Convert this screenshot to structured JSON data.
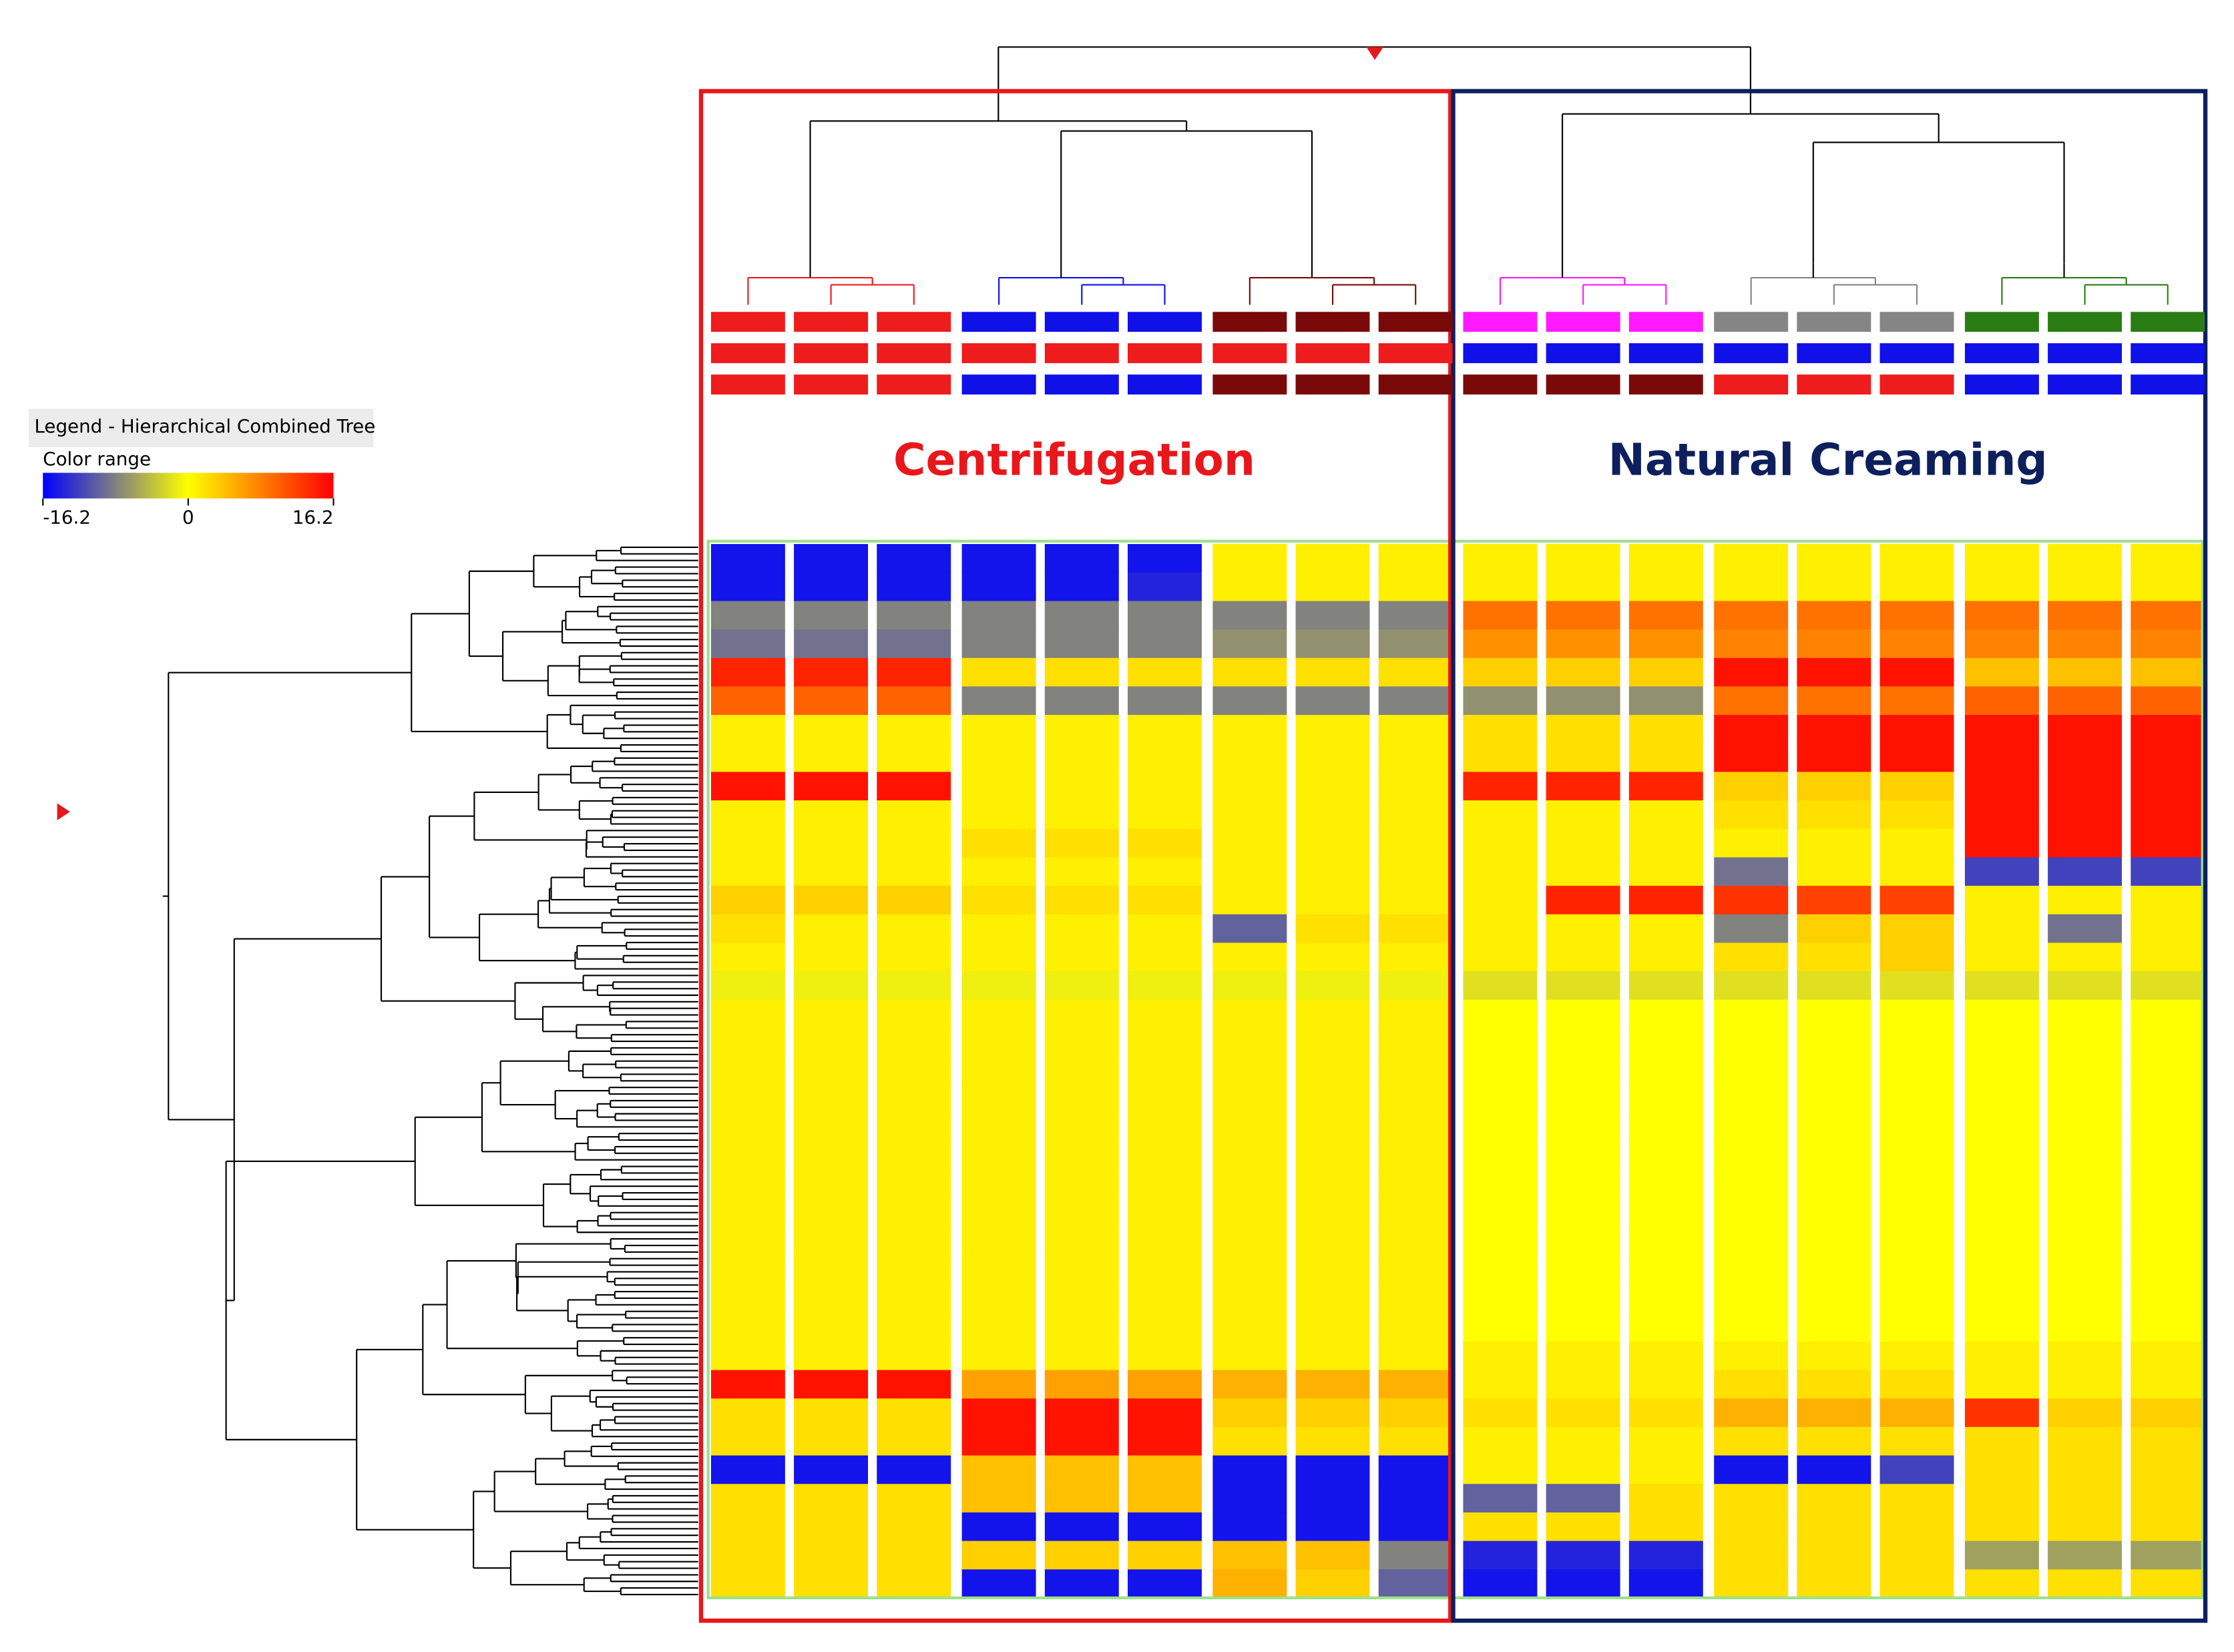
{
  "chart_data": {
    "type": "heatmap",
    "legend_title": "Legend - Hierarchical Combined Tree",
    "colorbar_label": "Color range",
    "clim": [
      -16.2,
      16.2
    ],
    "cticks": [
      -16.2,
      0,
      16.2
    ],
    "colorscale": [
      "#0000ff",
      "#808080",
      "#ffff00",
      "#ff8000",
      "#ff0000"
    ],
    "groups": [
      {
        "name": "Centrifugation",
        "color": "#e8171b"
      },
      {
        "name": "Natural Creaming",
        "color": "#0d1f5c"
      }
    ],
    "column_annotations": [
      [
        "#ee1c1c",
        "#ee1c1c",
        "#ee1c1c",
        "#1010e8",
        "#1010e8",
        "#1010e8",
        "#7a0a0a",
        "#7a0a0a",
        "#7a0a0a",
        "#ff19ff",
        "#ff19ff",
        "#ff19ff",
        "#858585",
        "#858585",
        "#858585",
        "#2a7d14",
        "#2a7d14",
        "#2a7d14"
      ],
      [
        "#ee1c1c",
        "#ee1c1c",
        "#ee1c1c",
        "#ee1c1c",
        "#ee1c1c",
        "#ee1c1c",
        "#ee1c1c",
        "#ee1c1c",
        "#ee1c1c",
        "#1010e8",
        "#1010e8",
        "#1010e8",
        "#1010e8",
        "#1010e8",
        "#1010e8",
        "#1010e8",
        "#1010e8",
        "#1010e8"
      ],
      [
        "#ee1c1c",
        "#ee1c1c",
        "#ee1c1c",
        "#1010e8",
        "#1010e8",
        "#1010e8",
        "#7a0a0a",
        "#7a0a0a",
        "#7a0a0a",
        "#7a0a0a",
        "#7a0a0a",
        "#7a0a0a",
        "#ee1c1c",
        "#ee1c1c",
        "#ee1c1c",
        "#1010e8",
        "#1010e8",
        "#1010e8"
      ]
    ],
    "values": [
      [
        -15,
        -15,
        -15,
        -15,
        -15,
        -15,
        1,
        1,
        1,
        1,
        1,
        1,
        1,
        1,
        1,
        1,
        1,
        1
      ],
      [
        -15,
        -15,
        -15,
        -15,
        -15,
        -14,
        1,
        1,
        1,
        1,
        1,
        1,
        1,
        1,
        1,
        1,
        1,
        1
      ],
      [
        -8,
        -8,
        -8,
        -8,
        -8,
        -8,
        -8,
        -8,
        -8,
        9,
        9,
        9,
        9,
        9,
        9,
        9,
        9,
        9
      ],
      [
        -9,
        -9,
        -9,
        -8,
        -8,
        -8,
        -7,
        -7,
        -7,
        7,
        7,
        7,
        8,
        8,
        8,
        8,
        8,
        8
      ],
      [
        14,
        14,
        14,
        2,
        2,
        2,
        2,
        2,
        2,
        3,
        3,
        3,
        15,
        15,
        15,
        4,
        4,
        4
      ],
      [
        10,
        10,
        10,
        -8,
        -8,
        -8,
        -8,
        -8,
        -8,
        -7,
        -7,
        -7,
        9,
        9,
        9,
        10,
        10,
        10
      ],
      [
        1,
        1,
        1,
        1,
        1,
        1,
        1,
        1,
        1,
        2,
        2,
        2,
        15,
        15,
        15,
        15,
        15,
        15
      ],
      [
        1,
        1,
        1,
        1,
        1,
        1,
        1,
        1,
        1,
        2,
        2,
        2,
        15,
        15,
        15,
        15,
        15,
        15
      ],
      [
        15,
        15,
        15,
        1,
        1,
        1,
        1,
        1,
        1,
        14,
        14,
        14,
        3,
        3,
        3,
        15,
        15,
        15
      ],
      [
        1,
        1,
        1,
        1,
        1,
        1,
        1,
        1,
        1,
        1,
        1,
        1,
        2,
        2,
        2,
        15,
        15,
        15
      ],
      [
        1,
        1,
        1,
        2,
        2,
        2,
        1,
        1,
        1,
        1,
        1,
        1,
        1,
        1,
        1,
        15,
        15,
        15
      ],
      [
        1,
        1,
        1,
        1,
        1,
        1,
        1,
        1,
        1,
        1,
        1,
        1,
        -9,
        1,
        1,
        -12,
        -12,
        -12
      ],
      [
        3,
        3,
        3,
        2,
        2,
        2,
        1,
        1,
        1,
        1,
        14,
        14,
        13,
        12,
        12,
        1,
        1,
        1
      ],
      [
        2,
        1,
        1,
        1,
        1,
        1,
        -10,
        2,
        2,
        1,
        1,
        1,
        -8,
        3,
        3,
        1,
        -9,
        1
      ],
      [
        1,
        1,
        1,
        1,
        1,
        1,
        1,
        1,
        1,
        1,
        1,
        1,
        2,
        2,
        3,
        1,
        1,
        1
      ],
      [
        -1,
        -1,
        -1,
        -1,
        -1,
        -1,
        -1,
        -1,
        -1,
        -2,
        -2,
        -2,
        -2,
        -2,
        -2,
        -2,
        -2,
        -2
      ],
      [
        1,
        1,
        1,
        1,
        1,
        1,
        1,
        1,
        1,
        0,
        0,
        0,
        0,
        0,
        0,
        0,
        0,
        0
      ],
      [
        1,
        1,
        1,
        1,
        1,
        1,
        1,
        1,
        1,
        0,
        0,
        0,
        0,
        0,
        0,
        0,
        0,
        0
      ],
      [
        1,
        1,
        1,
        1,
        1,
        1,
        1,
        1,
        1,
        0,
        0,
        0,
        0,
        0,
        0,
        0,
        0,
        0
      ],
      [
        1,
        1,
        1,
        1,
        1,
        1,
        1,
        1,
        1,
        0,
        0,
        0,
        0,
        0,
        0,
        0,
        0,
        0
      ],
      [
        1,
        1,
        1,
        1,
        1,
        1,
        1,
        1,
        1,
        0,
        0,
        0,
        0,
        0,
        0,
        0,
        0,
        0
      ],
      [
        1,
        1,
        1,
        1,
        1,
        1,
        1,
        1,
        1,
        0,
        0,
        0,
        0,
        0,
        0,
        0,
        0,
        0
      ],
      [
        1,
        1,
        1,
        1,
        1,
        1,
        1,
        1,
        1,
        0,
        0,
        0,
        0,
        0,
        0,
        0,
        0,
        0
      ],
      [
        1,
        1,
        1,
        1,
        1,
        1,
        1,
        1,
        1,
        0,
        0,
        0,
        0,
        0,
        0,
        0,
        0,
        0
      ],
      [
        1,
        1,
        1,
        1,
        1,
        1,
        1,
        1,
        1,
        0,
        0,
        0,
        0,
        0,
        0,
        0,
        0,
        0
      ],
      [
        1,
        1,
        1,
        1,
        1,
        1,
        1,
        1,
        1,
        0,
        0,
        0,
        0,
        0,
        0,
        0,
        0,
        0
      ],
      [
        1,
        1,
        1,
        1,
        1,
        1,
        1,
        1,
        1,
        0,
        0,
        0,
        0,
        0,
        0,
        0,
        0,
        0
      ],
      [
        1,
        1,
        1,
        1,
        1,
        1,
        1,
        1,
        1,
        0,
        0,
        0,
        0,
        0,
        0,
        0,
        0,
        0
      ],
      [
        1,
        1,
        1,
        1,
        1,
        1,
        1,
        1,
        1,
        1,
        1,
        1,
        1,
        1,
        1,
        1,
        1,
        1
      ],
      [
        15,
        15,
        15,
        6,
        6,
        6,
        5,
        5,
        5,
        1,
        1,
        1,
        2,
        2,
        2,
        1,
        1,
        1
      ],
      [
        2,
        2,
        2,
        15,
        15,
        15,
        3,
        3,
        3,
        2,
        2,
        2,
        5,
        5,
        5,
        13,
        3,
        3
      ],
      [
        2,
        2,
        2,
        15,
        15,
        15,
        2,
        2,
        2,
        1,
        1,
        1,
        2,
        2,
        2,
        2,
        2,
        2
      ],
      [
        -15,
        -15,
        -15,
        4,
        4,
        4,
        -15,
        -15,
        -15,
        1,
        1,
        1,
        -15,
        -15,
        -12,
        2,
        2,
        2
      ],
      [
        2,
        2,
        2,
        4,
        4,
        4,
        -15,
        -15,
        -15,
        -10,
        -10,
        2,
        2,
        2,
        2,
        2,
        2,
        2
      ],
      [
        2,
        2,
        2,
        -15,
        -15,
        -15,
        -15,
        -15,
        -15,
        2,
        2,
        2,
        2,
        2,
        2,
        2,
        2,
        2
      ],
      [
        2,
        2,
        2,
        3,
        3,
        3,
        4,
        4,
        -8,
        -14,
        -14,
        -14,
        2,
        2,
        2,
        -6,
        -6,
        -6
      ],
      [
        2,
        2,
        2,
        -15,
        -15,
        -15,
        5,
        3,
        -10,
        -15,
        -15,
        -15,
        2,
        2,
        2,
        2,
        2,
        2
      ]
    ]
  }
}
